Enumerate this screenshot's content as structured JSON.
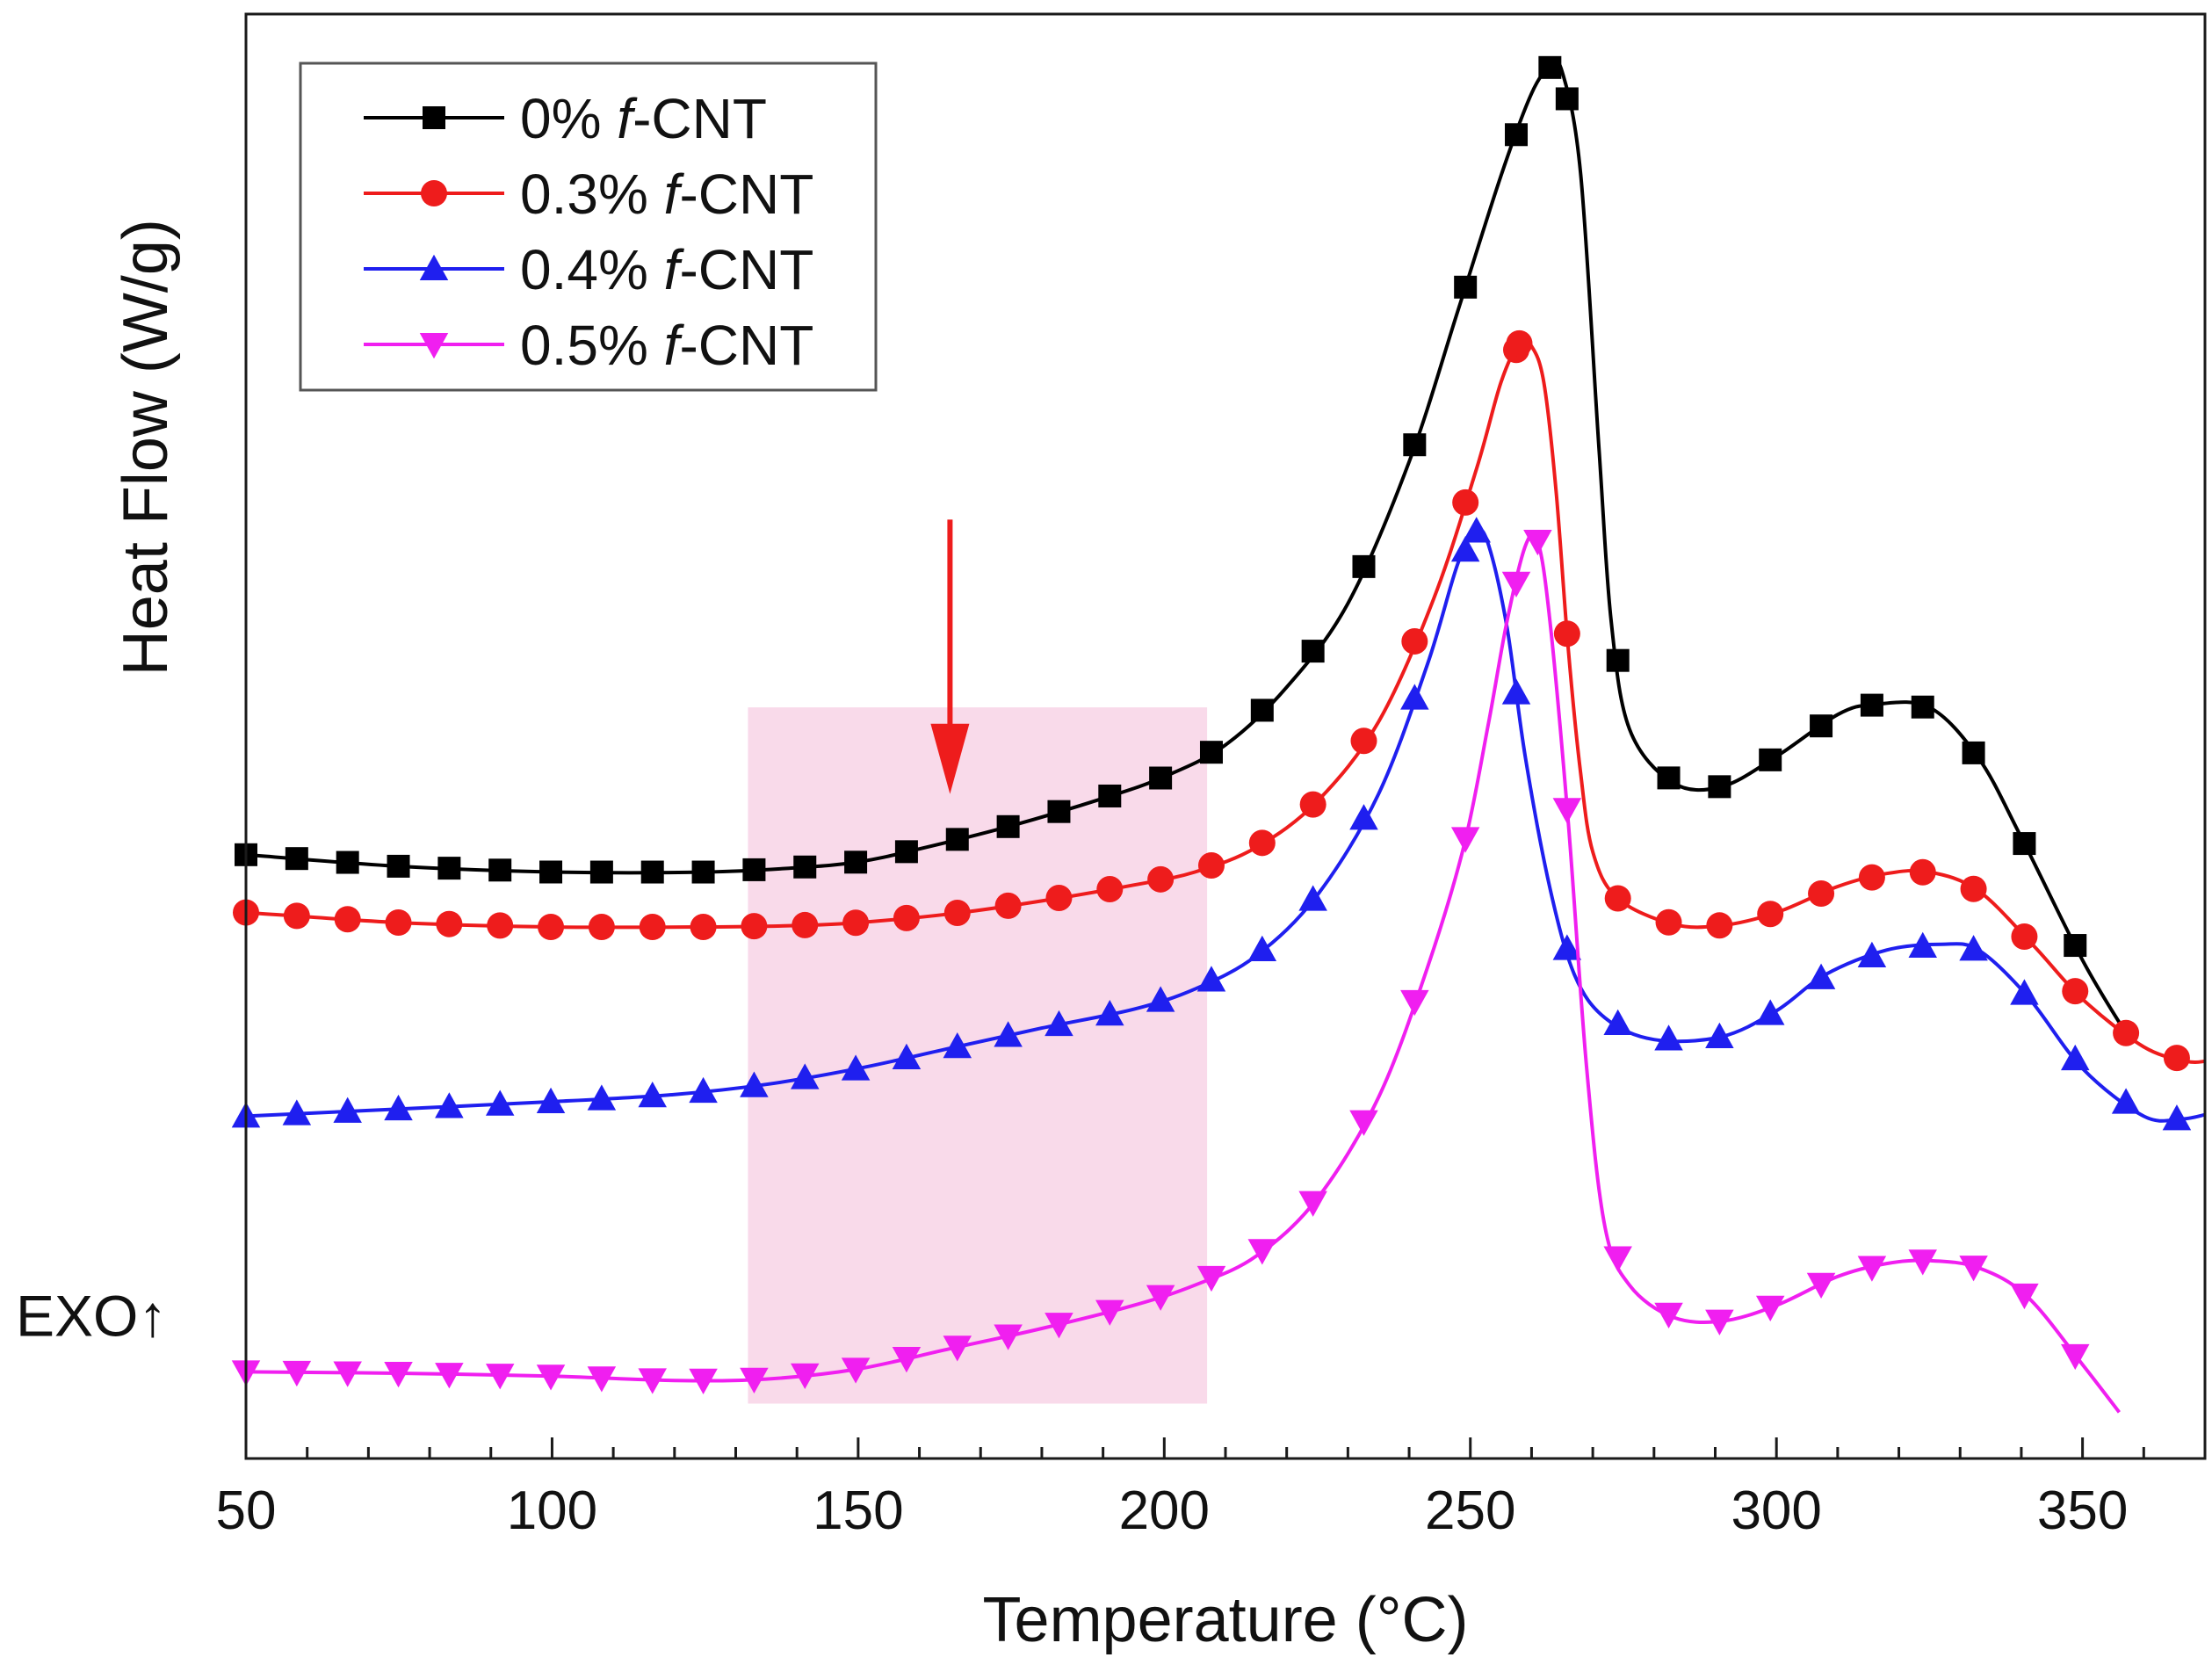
{
  "chart_data": {
    "type": "line",
    "title": "",
    "xlabel": "Temperature (°C)",
    "ylabel": "Heat Flow (W/g)",
    "xlim": [
      50,
      370
    ],
    "ylim": [
      0,
      100
    ],
    "x_ticks": [
      50,
      100,
      150,
      200,
      250,
      300,
      350
    ],
    "x_tick_labels": [
      "50",
      "100",
      "150",
      "200",
      "250",
      "300",
      "350"
    ],
    "legend_position": "top-left",
    "annotations": {
      "exo": "EXO",
      "exo_arrow": "↑",
      "highlight_range": [
        132,
        207
      ],
      "highlight_y_range": [
        3.8,
        52
      ],
      "highlight_color": "#f8d3e6",
      "arrow_x": 165,
      "arrow_y_range": [
        65,
        46
      ],
      "arrow_color": "#ee1c1c"
    },
    "series": [
      {
        "name": "0% f-CNT",
        "name_prefix": "0% ",
        "name_italic": "f",
        "name_suffix": "-CNT",
        "color": "#000000",
        "marker": "square",
        "marker_step": 8.3,
        "end_x": 357,
        "points": [
          [
            50,
            41.8
          ],
          [
            75,
            41.0
          ],
          [
            100,
            40.6
          ],
          [
            125,
            40.6
          ],
          [
            140,
            40.9
          ],
          [
            150,
            41.3
          ],
          [
            160,
            42.2
          ],
          [
            175,
            43.8
          ],
          [
            190,
            45.7
          ],
          [
            200,
            47.2
          ],
          [
            210,
            49.4
          ],
          [
            220,
            53.4
          ],
          [
            230,
            59.2
          ],
          [
            240,
            69.0
          ],
          [
            248,
            79.5
          ],
          [
            255,
            88.8
          ],
          [
            260,
            94.5
          ],
          [
            263,
            96.3
          ],
          [
            265,
            96.0
          ],
          [
            268,
            89.0
          ],
          [
            271,
            70.0
          ],
          [
            273,
            58.0
          ],
          [
            276,
            50.5
          ],
          [
            283,
            46.8
          ],
          [
            291,
            46.5
          ],
          [
            300,
            48.6
          ],
          [
            310,
            51.5
          ],
          [
            316,
            52.2
          ],
          [
            325,
            52.0
          ],
          [
            333,
            48.5
          ],
          [
            340,
            43.0
          ],
          [
            350,
            34.5
          ],
          [
            357,
            29.5
          ]
        ]
      },
      {
        "name": "0.3% f-CNT",
        "name_prefix": "0.3% ",
        "name_italic": "f",
        "name_suffix": "-CNT",
        "color": "#ee1c1c",
        "marker": "circle",
        "marker_step": 8.3,
        "end_x": 370,
        "points": [
          [
            50,
            37.8
          ],
          [
            75,
            37.1
          ],
          [
            100,
            36.8
          ],
          [
            125,
            36.8
          ],
          [
            140,
            36.9
          ],
          [
            150,
            37.1
          ],
          [
            165,
            37.7
          ],
          [
            180,
            38.6
          ],
          [
            195,
            39.7
          ],
          [
            205,
            40.6
          ],
          [
            215,
            42.3
          ],
          [
            225,
            45.5
          ],
          [
            235,
            51.0
          ],
          [
            244,
            59.5
          ],
          [
            251,
            68.5
          ],
          [
            255,
            74.5
          ],
          [
            258,
            77.2
          ],
          [
            260,
            77.0
          ],
          [
            262,
            74.5
          ],
          [
            264,
            67.0
          ],
          [
            266,
            56.0
          ],
          [
            268,
            47.5
          ],
          [
            270,
            42.0
          ],
          [
            274,
            38.8
          ],
          [
            283,
            37.0
          ],
          [
            291,
            36.9
          ],
          [
            300,
            37.8
          ],
          [
            310,
            39.6
          ],
          [
            318,
            40.5
          ],
          [
            325,
            40.6
          ],
          [
            333,
            39.3
          ],
          [
            342,
            35.5
          ],
          [
            350,
            31.8
          ],
          [
            360,
            28.5
          ],
          [
            367,
            27.5
          ],
          [
            370,
            27.5
          ]
        ]
      },
      {
        "name": "0.4% f-CNT",
        "name_prefix": "0.4% ",
        "name_italic": "f",
        "name_suffix": "-CNT",
        "color": "#1f1fef",
        "marker": "triangle-up",
        "marker_step": 8.3,
        "end_x": 370,
        "points": [
          [
            50,
            23.7
          ],
          [
            75,
            24.2
          ],
          [
            100,
            24.7
          ],
          [
            120,
            25.2
          ],
          [
            135,
            25.9
          ],
          [
            150,
            27.0
          ],
          [
            165,
            28.4
          ],
          [
            180,
            29.8
          ],
          [
            195,
            31.1
          ],
          [
            205,
            32.5
          ],
          [
            215,
            34.8
          ],
          [
            225,
            39.0
          ],
          [
            235,
            46.0
          ],
          [
            243,
            55.0
          ],
          [
            248,
            62.0
          ],
          [
            251,
            64.2
          ],
          [
            253,
            63.2
          ],
          [
            256,
            57.5
          ],
          [
            259,
            48.5
          ],
          [
            263,
            39.5
          ],
          [
            267,
            33.5
          ],
          [
            272,
            30.5
          ],
          [
            280,
            29.0
          ],
          [
            291,
            29.2
          ],
          [
            300,
            31.0
          ],
          [
            308,
            33.5
          ],
          [
            318,
            35.2
          ],
          [
            327,
            35.6
          ],
          [
            333,
            35.2
          ],
          [
            341,
            32.0
          ],
          [
            350,
            27.0
          ],
          [
            360,
            23.7
          ],
          [
            366,
            23.5
          ],
          [
            370,
            23.8
          ]
        ]
      },
      {
        "name": "0.5% f-CNT",
        "name_prefix": "0.5% ",
        "name_italic": "f",
        "name_suffix": "-CNT",
        "color": "#f01ff0",
        "marker": "triangle-down",
        "marker_step": 8.3,
        "end_x": 356,
        "points": [
          [
            50,
            6.0
          ],
          [
            75,
            5.9
          ],
          [
            100,
            5.7
          ],
          [
            120,
            5.4
          ],
          [
            135,
            5.5
          ],
          [
            150,
            6.2
          ],
          [
            165,
            7.6
          ],
          [
            180,
            9.0
          ],
          [
            195,
            10.6
          ],
          [
            205,
            12.0
          ],
          [
            215,
            14.0
          ],
          [
            225,
            18.0
          ],
          [
            235,
            25.0
          ],
          [
            243,
            34.0
          ],
          [
            249,
            42.5
          ],
          [
            253,
            51.0
          ],
          [
            256,
            58.0
          ],
          [
            259,
            63.2
          ],
          [
            261,
            63.5
          ],
          [
            263,
            58.0
          ],
          [
            266,
            44.0
          ],
          [
            269,
            27.0
          ],
          [
            272,
            16.0
          ],
          [
            276,
            12.0
          ],
          [
            283,
            9.8
          ],
          [
            291,
            9.5
          ],
          [
            300,
            10.6
          ],
          [
            310,
            12.6
          ],
          [
            318,
            13.5
          ],
          [
            325,
            13.7
          ],
          [
            333,
            13.2
          ],
          [
            341,
            11.2
          ],
          [
            350,
            6.5
          ],
          [
            356,
            3.2
          ]
        ]
      }
    ]
  }
}
